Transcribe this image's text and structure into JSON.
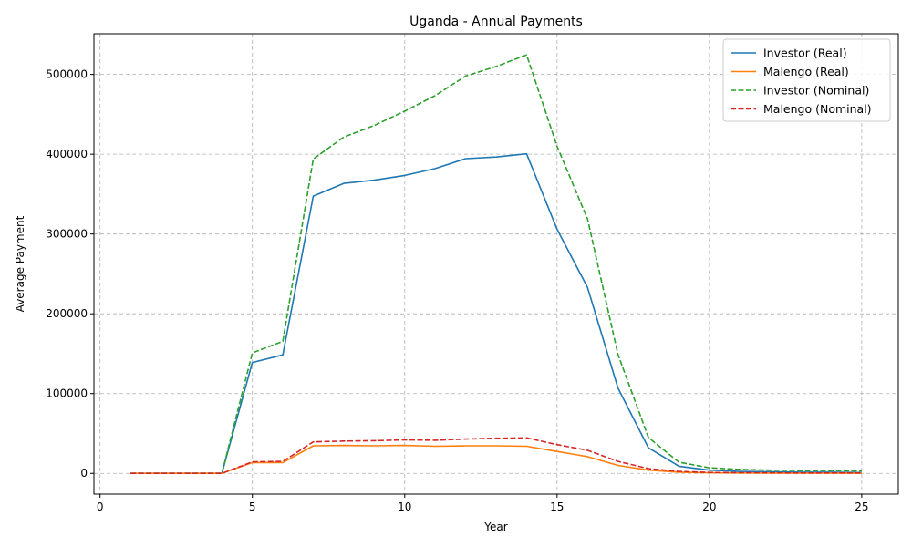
{
  "chart_data": {
    "type": "line",
    "title": "Uganda - Annual Payments",
    "xlabel": "Year",
    "ylabel": "Average Payment",
    "xlim": [
      -0.2,
      26.2
    ],
    "ylim": [
      -26000,
      551000
    ],
    "xticks": [
      0,
      5,
      10,
      15,
      20,
      25
    ],
    "yticks": [
      0,
      100000,
      200000,
      300000,
      400000,
      500000
    ],
    "grid": true,
    "legend_position": "top-right",
    "x": [
      1,
      2,
      3,
      4,
      5,
      6,
      7,
      8,
      9,
      10,
      11,
      12,
      13,
      14,
      15,
      16,
      17,
      18,
      19,
      20,
      21,
      22,
      23,
      24,
      25
    ],
    "series": [
      {
        "name": "Investor (Real)",
        "color": "#1f77b4",
        "style": "solid",
        "values": [
          0,
          0,
          0,
          0,
          139000,
          148500,
          347500,
          363500,
          367500,
          373500,
          382000,
          394500,
          396500,
          400500,
          306000,
          233000,
          107000,
          32000,
          9000,
          4000,
          2500,
          2000,
          1500,
          1500,
          1000
        ]
      },
      {
        "name": "Malengo (Real)",
        "color": "#ff7f0e",
        "style": "solid",
        "values": [
          0,
          0,
          0,
          0,
          13500,
          13500,
          34500,
          35000,
          34500,
          35000,
          34000,
          34500,
          34500,
          34000,
          27500,
          21000,
          10000,
          4000,
          1500,
          700,
          500,
          400,
          300,
          300,
          200
        ]
      },
      {
        "name": "Investor (Nominal)",
        "color": "#2ca02c",
        "style": "dashed",
        "values": [
          0,
          0,
          0,
          0,
          151000,
          165500,
          394000,
          421500,
          436000,
          454000,
          473500,
          498000,
          510000,
          524500,
          410000,
          319000,
          149000,
          45000,
          14000,
          7000,
          5000,
          4000,
          3500,
          3500,
          3000
        ]
      },
      {
        "name": "Malengo (Nominal)",
        "color": "#d62728",
        "style": "dashed",
        "values": [
          0,
          0,
          0,
          0,
          14500,
          15000,
          39500,
          40500,
          41000,
          42000,
          41500,
          43000,
          44000,
          44500,
          36000,
          29000,
          15000,
          6000,
          2500,
          1200,
          800,
          600,
          500,
          500,
          400
        ]
      }
    ]
  }
}
